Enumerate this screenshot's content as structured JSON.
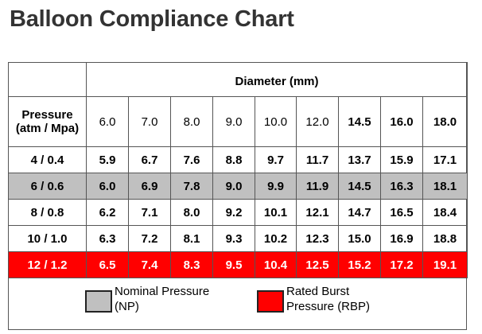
{
  "title": "Balloon Compliance Chart",
  "colors": {
    "np": "#c0c0c0",
    "rbp": "#ff0000",
    "title": "#333333"
  },
  "chart_data": {
    "type": "table",
    "title": "Balloon Compliance Chart",
    "column_header": "Diameter (mm)",
    "row_header": "Pressure (atm / Mpa)",
    "diameters": [
      {
        "label": "6.0",
        "bold": false
      },
      {
        "label": "7.0",
        "bold": false
      },
      {
        "label": "8.0",
        "bold": false
      },
      {
        "label": "9.0",
        "bold": false
      },
      {
        "label": "10.0",
        "bold": false
      },
      {
        "label": "12.0",
        "bold": false
      },
      {
        "label": "14.5",
        "bold": true
      },
      {
        "label": "16.0",
        "bold": true
      },
      {
        "label": "18.0",
        "bold": true
      }
    ],
    "rows": [
      {
        "pressure": "4 / 0.4",
        "highlight": "",
        "values": [
          "5.9",
          "6.7",
          "7.6",
          "8.8",
          "9.7",
          "11.7",
          "13.7",
          "15.9",
          "17.1"
        ]
      },
      {
        "pressure": "6 / 0.6",
        "highlight": "np",
        "values": [
          "6.0",
          "6.9",
          "7.8",
          "9.0",
          "9.9",
          "11.9",
          "14.5",
          "16.3",
          "18.1"
        ]
      },
      {
        "pressure": "8 / 0.8",
        "highlight": "",
        "values": [
          "6.2",
          "7.1",
          "8.0",
          "9.2",
          "10.1",
          "12.1",
          "14.7",
          "16.5",
          "18.4"
        ]
      },
      {
        "pressure": "10 / 1.0",
        "highlight": "",
        "values": [
          "6.3",
          "7.2",
          "8.1",
          "9.3",
          "10.2",
          "12.3",
          "15.0",
          "16.9",
          "18.8"
        ]
      },
      {
        "pressure": "12 / 1.2",
        "highlight": "rbp",
        "values": [
          "6.5",
          "7.4",
          "8.3",
          "9.5",
          "10.4",
          "12.5",
          "15.2",
          "17.2",
          "19.1"
        ]
      }
    ],
    "legend": [
      {
        "key": "np",
        "line1": "Nominal Pressure",
        "line2": "(NP)"
      },
      {
        "key": "rbp",
        "line1": "Rated Burst",
        "line2": "Pressure (RBP)"
      }
    ]
  }
}
